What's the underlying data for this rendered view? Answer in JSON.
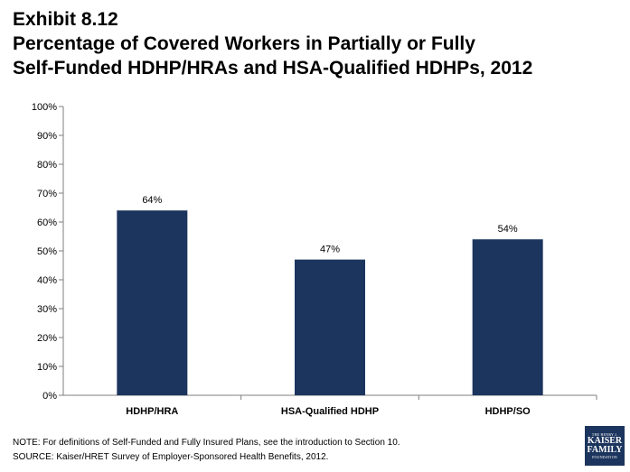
{
  "title_lines": [
    "Exhibit 8.12",
    "Percentage of Covered Workers in Partially or Fully",
    "Self-Funded HDHP/HRAs and HSA-Qualified HDHPs, 2012"
  ],
  "chart_data": {
    "type": "bar",
    "title": "Exhibit 8.12 Percentage of Covered Workers in Partially or Fully Self-Funded HDHP/HRAs and HSA-Qualified HDHPs, 2012",
    "categories": [
      "HDHP/HRA",
      "HSA-Qualified HDHP",
      "HDHP/SO"
    ],
    "values": [
      64,
      47,
      54
    ],
    "data_labels": [
      "64%",
      "47%",
      "54%"
    ],
    "ylim": [
      0,
      100
    ],
    "y_ticks": [
      0,
      10,
      20,
      30,
      40,
      50,
      60,
      70,
      80,
      90,
      100
    ],
    "y_tick_labels": [
      "0%",
      "10%",
      "20%",
      "30%",
      "40%",
      "50%",
      "60%",
      "70%",
      "80%",
      "90%",
      "100%"
    ],
    "xlabel": "",
    "ylabel": "",
    "grid": false,
    "legend": "none",
    "bar_color": "#1c355e"
  },
  "notes": {
    "note": "NOTE: For definitions of Self-Funded and Fully Insured Plans, see the introduction to Section 10.",
    "source": "SOURCE:  Kaiser/HRET Survey of Employer-Sponsored Health Benefits, 2012."
  },
  "logo": {
    "line1": "THE HENRY J.",
    "line2": "KAISER",
    "line3": "FAMILY",
    "line4": "FOUNDATION"
  }
}
